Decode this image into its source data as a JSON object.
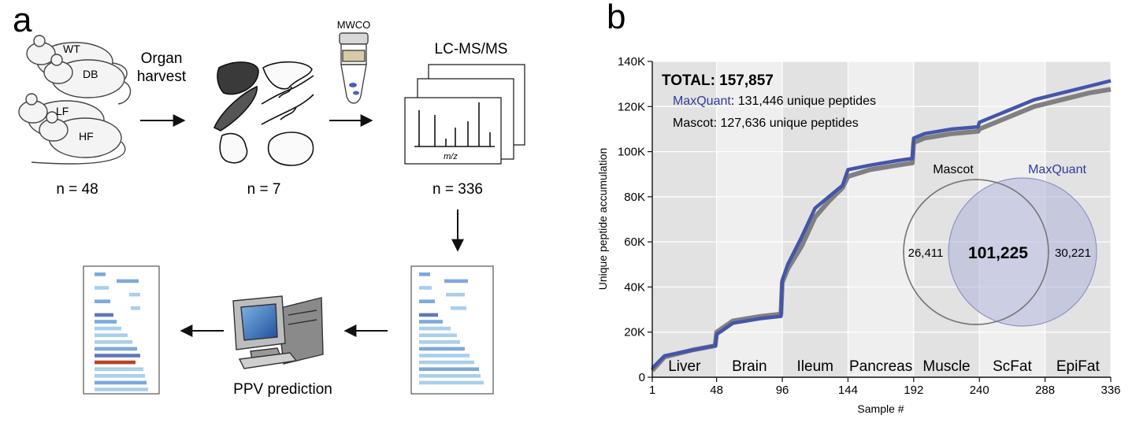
{
  "panel_a": {
    "label": "a",
    "mice": {
      "labels": [
        "WT",
        "DB",
        "LF",
        "HF"
      ],
      "count": "n = 48"
    },
    "organ_harvest": [
      "Organ",
      "harvest"
    ],
    "organs_count": "n = 7",
    "mwco": "MWCO",
    "lcms": "LC-MS/MS",
    "mz": "m/z",
    "samples_count": "n = 336",
    "ppv": "PPV prediction",
    "colors": {
      "light_bar": "#a9cfec",
      "mid_bar": "#7da9dc",
      "dark_bar": "#5f79b8",
      "red_bar": "#b8432a",
      "tube_blue": "#4a62b4"
    }
  },
  "panel_b": {
    "label": "b",
    "annotation": {
      "total": "TOTAL: 157,857",
      "maxquant_name": "MaxQuant",
      "maxquant_rest": ": 131,446 unique peptides",
      "mascot_line": "Mascot: 127,636 unique peptides"
    },
    "venn": {
      "left_label": "Mascot",
      "right_label": "MaxQuant",
      "left_only": "26,411",
      "overlap": "101,225",
      "right_only": "30,221",
      "left_color": "#9a9a9a",
      "right_color": "#aeb2d8"
    }
  },
  "chart_data": {
    "type": "line",
    "title": "",
    "xlabel": "Sample #",
    "ylabel": "Unique peptide accumulation",
    "xlim": [
      1,
      336
    ],
    "ylim": [
      0,
      140000
    ],
    "x_ticks": [
      1,
      48,
      96,
      144,
      192,
      240,
      288,
      336
    ],
    "y_ticks": [
      0,
      20000,
      40000,
      60000,
      80000,
      100000,
      120000,
      140000
    ],
    "y_tick_labels": [
      "0",
      "20K",
      "40K",
      "60K",
      "80K",
      "100K",
      "120K",
      "140K"
    ],
    "regions": [
      {
        "name": "Liver",
        "start": 1,
        "end": 48,
        "shade": "#e2e2e2"
      },
      {
        "name": "Brain",
        "start": 48,
        "end": 96,
        "shade": "#efefef"
      },
      {
        "name": "Ileum",
        "start": 96,
        "end": 144,
        "shade": "#e2e2e2"
      },
      {
        "name": "Pancreas",
        "start": 144,
        "end": 192,
        "shade": "#efefef"
      },
      {
        "name": "Muscle",
        "start": 192,
        "end": 240,
        "shade": "#e2e2e2"
      },
      {
        "name": "ScFat",
        "start": 240,
        "end": 288,
        "shade": "#efefef"
      },
      {
        "name": "EpiFat",
        "start": 288,
        "end": 336,
        "shade": "#e2e2e2"
      }
    ],
    "grid": true,
    "series": [
      {
        "name": "Mascot",
        "color": "#808080",
        "x": [
          1,
          10,
          30,
          47,
          48,
          60,
          80,
          95,
          96,
          100,
          110,
          120,
          130,
          140,
          144,
          160,
          180,
          191,
          192,
          200,
          220,
          239,
          240,
          260,
          280,
          300,
          320,
          336
        ],
        "y": [
          3000,
          9000,
          12000,
          14000,
          20000,
          25000,
          27000,
          28000,
          42000,
          48000,
          58000,
          71000,
          78000,
          84000,
          89000,
          92000,
          94000,
          95000,
          104000,
          106000,
          108000,
          109000,
          110000,
          115000,
          120000,
          123000,
          126000,
          127636
        ]
      },
      {
        "name": "MaxQuant",
        "color": "#4455aa",
        "x": [
          1,
          10,
          30,
          47,
          48,
          60,
          80,
          95,
          96,
          100,
          110,
          120,
          130,
          140,
          144,
          160,
          180,
          191,
          192,
          200,
          220,
          239,
          240,
          260,
          280,
          300,
          320,
          336
        ],
        "y": [
          4000,
          9500,
          12000,
          14000,
          19000,
          24000,
          26000,
          27000,
          43000,
          50000,
          62000,
          75000,
          80000,
          85000,
          92000,
          94000,
          96000,
          97000,
          106000,
          108000,
          110000,
          111000,
          113000,
          118000,
          123000,
          126000,
          129000,
          131446
        ]
      }
    ]
  }
}
